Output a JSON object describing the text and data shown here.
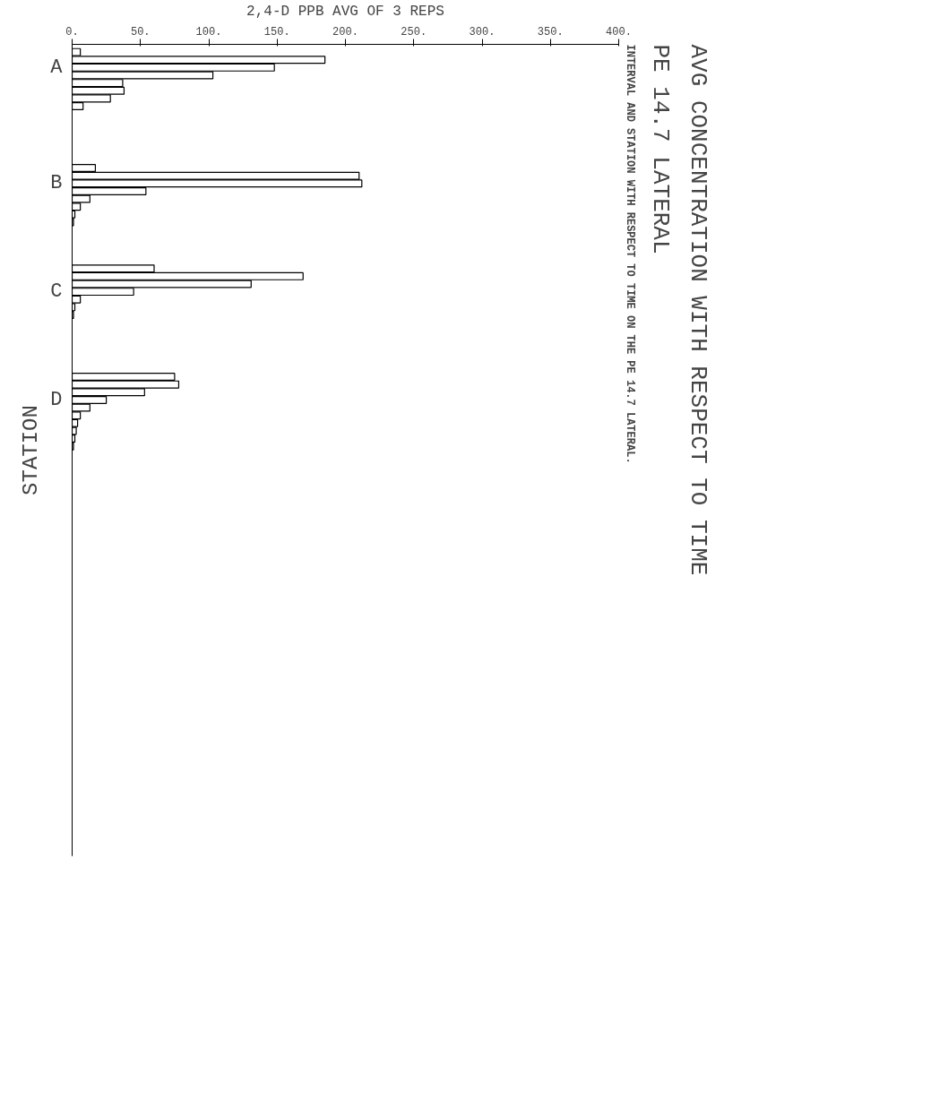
{
  "chart_data": {
    "type": "bar",
    "orientation": "horizontal",
    "title": "PE 14.7 LATERAL",
    "subtitle": "AVG CONCENTRATION WITH RESPECT TO TIME",
    "xlabel": "2,4-D PPB AVG OF 3 REPS",
    "ylabel": "STATION",
    "annotations": [
      "INTERVAL AND STATION WITH RESPECT TO TIME ON THE PE 14.7 LATERAL."
    ],
    "categories": [
      null,
      null,
      "A",
      null,
      null,
      null,
      null,
      null,
      null,
      null,
      null,
      null,
      null,
      null,
      null,
      null,
      null,
      "B",
      null,
      null,
      null,
      null,
      null,
      null,
      null,
      null,
      null,
      null,
      null,
      null,
      null,
      "C",
      null,
      null,
      null,
      null,
      null,
      null,
      null,
      null,
      null,
      null,
      null,
      null,
      null,
      "D",
      null,
      null,
      null,
      null,
      null,
      null
    ],
    "values": [
      6,
      185,
      148,
      103,
      37,
      38,
      28,
      8,
      null,
      null,
      null,
      null,
      null,
      null,
      null,
      17,
      210,
      212,
      54,
      13,
      6,
      2,
      1,
      null,
      null,
      null,
      null,
      null,
      60,
      169,
      131,
      45,
      6,
      2,
      1,
      null,
      null,
      null,
      null,
      null,
      null,
      null,
      75,
      78,
      53,
      25,
      13,
      6,
      4,
      3,
      2,
      1
    ],
    "color": "#ffffff",
    "xlim": [
      0,
      400
    ],
    "xticks": [
      {
        "value": 0,
        "label": "0."
      },
      {
        "value": 50,
        "label": "50."
      },
      {
        "value": 100,
        "label": "100."
      },
      {
        "value": 150,
        "label": "150."
      },
      {
        "value": 200,
        "label": "200."
      },
      {
        "value": 250,
        "label": "250."
      },
      {
        "value": 300,
        "label": "300."
      },
      {
        "value": 350,
        "label": "350."
      },
      {
        "value": 400,
        "label": "400."
      }
    ]
  }
}
